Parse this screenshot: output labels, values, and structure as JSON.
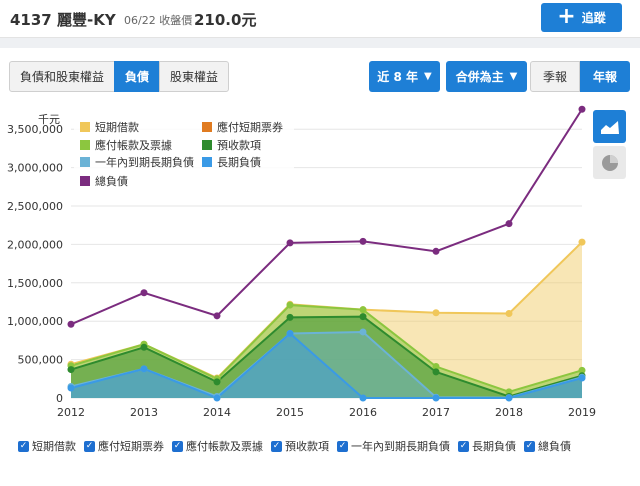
{
  "header": {
    "stock_name": "4137 麗豐-KY",
    "meta": "06/22 收盤價",
    "price": "210.0元",
    "follow_label": "追蹤"
  },
  "tabs": [
    {
      "label": "負債和股東權益",
      "active": false
    },
    {
      "label": "負債",
      "active": true
    },
    {
      "label": "股東權益",
      "active": false
    }
  ],
  "controls": {
    "years_label": "近 8 年",
    "basis_label": "合併為主",
    "quarterly_label": "季報",
    "annual_label": "年報"
  },
  "icons": {
    "follow": "plus-icon",
    "area_chart": "area-chart-icon",
    "pie_chart": "pie-chart-icon"
  },
  "colors": {
    "accent": "#1e7fd6",
    "short_term_loans": "#f0c75a",
    "commercial_paper": "#e07b21",
    "accounts_payable": "#8cc63f",
    "advance_receipts": "#2e8b2e",
    "current_long_term": "#6bb3d6",
    "long_term_debt": "#3a9ae6",
    "total": "#7b2c7f"
  },
  "chart_data": {
    "type": "area",
    "unit_label": "千元",
    "x": [
      "2012",
      "2013",
      "2014",
      "2015",
      "2016",
      "2017",
      "2018",
      "2019"
    ],
    "ylim": [
      0,
      3750000
    ],
    "yticks": [
      "0",
      "500,000",
      "1,000,000",
      "1,500,000",
      "2,000,000",
      "2,500,000",
      "3,000,000",
      "3,500,000"
    ],
    "legend_placement": "top-left",
    "series": [
      {
        "name": "短期借款",
        "key": "short_term_loans",
        "values": [
          440000,
          700000,
          260000,
          1220000,
          1150000,
          1110000,
          1100000,
          2030000
        ]
      },
      {
        "name": "應付短期票券",
        "key": "commercial_paper",
        "values": [
          null,
          null,
          null,
          null,
          null,
          null,
          null,
          null
        ]
      },
      {
        "name": "應付帳款及票據",
        "key": "accounts_payable",
        "values": [
          420000,
          700000,
          250000,
          1210000,
          1150000,
          410000,
          80000,
          360000
        ]
      },
      {
        "name": "預收款項",
        "key": "advance_receipts",
        "values": [
          370000,
          660000,
          210000,
          1050000,
          1060000,
          340000,
          20000,
          290000
        ]
      },
      {
        "name": "一年內到期長期負債",
        "key": "current_long_term",
        "values": [
          150000,
          380000,
          20000,
          840000,
          860000,
          10000,
          5000,
          270000
        ]
      },
      {
        "name": "長期負債",
        "key": "long_term_debt",
        "values": [
          130000,
          380000,
          0,
          840000,
          0,
          0,
          0,
          260000
        ]
      },
      {
        "name": "總負債",
        "key": "total",
        "values": [
          960000,
          1370000,
          1070000,
          2020000,
          2040000,
          1910000,
          2270000,
          3760000
        ]
      }
    ]
  },
  "checkbox_labels": [
    "短期借款",
    "應付短期票券",
    "應付帳款及票據",
    "預收款項",
    "一年內到期長期負債",
    "長期負債",
    "總負債"
  ]
}
